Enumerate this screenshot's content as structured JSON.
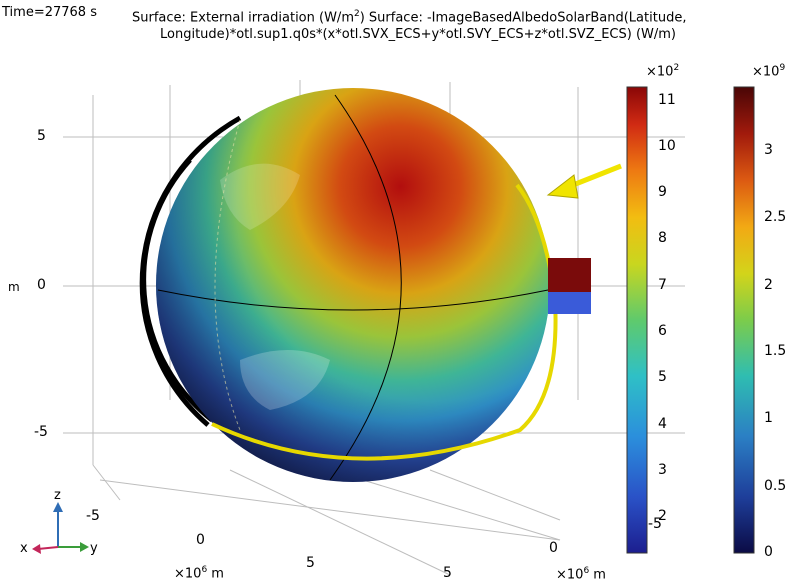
{
  "header": {
    "time_label": "Time=27768 s",
    "title_line1_a": "Surface: External irradiation (W/m",
    "title_line1_sup": "2",
    "title_line1_b": ")  Surface: -ImageBasedAlbedoSolarBand(Latitude,",
    "title_line2": "Longitude)*otl.sup1.q0s*(x*otl.SVX_ECS+y*otl.SVY_ECS+z*otl.SVZ_ECS) (W/m)"
  },
  "axes": {
    "z_ticks": [
      "5",
      "0",
      "-5"
    ],
    "z_unit": "m",
    "x_ticks": [
      "-5",
      "0",
      "5"
    ],
    "x_unit_label": "×10",
    "x_unit_sup": "6",
    "x_unit_suffix": " m",
    "y_ticks": [
      "0",
      "5"
    ],
    "y_unit_label": "×10",
    "y_unit_sup": "6",
    "y_unit_suffix": " m",
    "triad": {
      "z": "z",
      "x": "x",
      "y": "y"
    }
  },
  "colorbar1": {
    "exponent_base": "×10",
    "exponent_sup": "2",
    "ticks": [
      "11",
      "10",
      "9",
      "8",
      "7",
      "6",
      "5",
      "4",
      "3",
      "2"
    ],
    "overlap_label": "-5"
  },
  "colorbar2": {
    "exponent_base": "×10",
    "exponent_sup": "9",
    "ticks": [
      "3",
      "2.5",
      "2",
      "1.5",
      "1",
      "0.5",
      "0"
    ]
  },
  "colors": {
    "orbit_lit": "#e6d800",
    "orbit_dark": "#000000",
    "sun_arrow": "#f0e400",
    "panel_top": "#7a0b0b",
    "panel_bottom": "#3a5bd9"
  }
}
